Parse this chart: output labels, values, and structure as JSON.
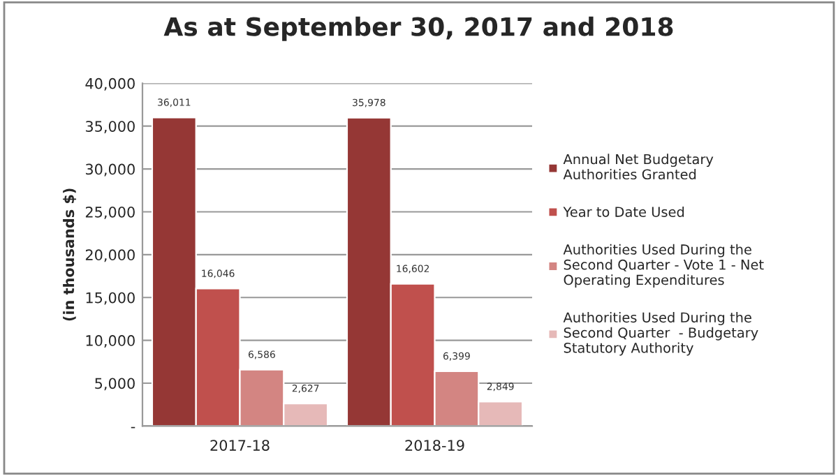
{
  "chart_data": {
    "type": "bar",
    "title": "As at September 30, 2017 and 2018",
    "ylabel": "(in thousands $)",
    "categories": [
      "2017-18",
      "2018-19"
    ],
    "series": [
      {
        "name": "Annual Net Budgetary\nAuthorities Granted",
        "color": "#953735",
        "values": [
          36011,
          35978
        ],
        "value_labels": [
          "36,011",
          "35,978"
        ]
      },
      {
        "name": "Year to Date Used",
        "color": "#c0504d",
        "values": [
          16046,
          16602
        ],
        "value_labels": [
          "16,046",
          "16,602"
        ]
      },
      {
        "name": "Authorities Used During the\nSecond Quarter - Vote 1 - Net\nOperating Expenditures",
        "color": "#d38582",
        "values": [
          6586,
          6399
        ],
        "value_labels": [
          "6,586",
          "6,399"
        ]
      },
      {
        "name": "Authorities Used During the\nSecond Quarter  - Budgetary\nStatutory Authority",
        "color": "#e6b9b8",
        "values": [
          2627,
          2849
        ],
        "value_labels": [
          "2,627",
          "2,849"
        ]
      }
    ],
    "ylim": [
      0,
      40000
    ],
    "yticks": [
      {
        "value": 0,
        "label": "-"
      },
      {
        "value": 5000,
        "label": "5,000"
      },
      {
        "value": 10000,
        "label": "10,000"
      },
      {
        "value": 15000,
        "label": "15,000"
      },
      {
        "value": 20000,
        "label": "20,000"
      },
      {
        "value": 25000,
        "label": "25,000"
      },
      {
        "value": 30000,
        "label": "30,000"
      },
      {
        "value": 35000,
        "label": "35,000"
      },
      {
        "value": 40000,
        "label": "40,000"
      }
    ],
    "grid": "y",
    "legend": "right"
  }
}
